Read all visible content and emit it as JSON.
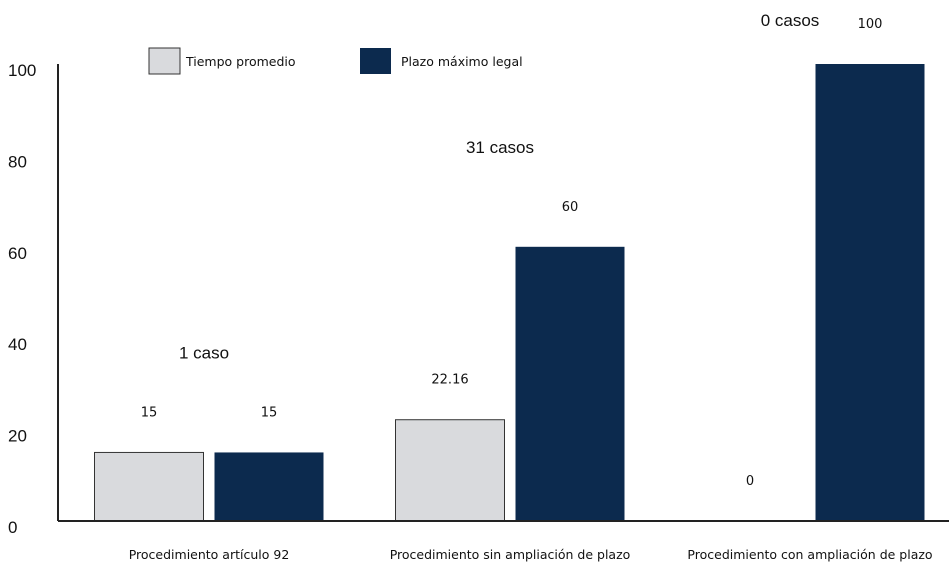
{
  "chart_data": {
    "type": "bar",
    "categories": [
      "Procedimiento artículo 92",
      "Procedimiento sin ampliación de plazo",
      "Procedimiento con ampliación de plazo"
    ],
    "series": [
      {
        "name": "Tiempo promedio",
        "values": [
          15,
          22.16,
          0
        ],
        "labels": [
          "15",
          "22.16",
          "0"
        ],
        "color": "#d9dadd"
      },
      {
        "name": "Plazo máximo legal",
        "values": [
          15,
          60,
          100
        ],
        "labels": [
          "15",
          "60",
          "100"
        ],
        "color": "#0c2a4e"
      }
    ],
    "case_counts": [
      "1 caso",
      "31 casos",
      "0 casos"
    ],
    "ylim": [
      0,
      100
    ],
    "yticks": [
      0,
      20,
      40,
      60,
      80,
      100
    ],
    "grid": false,
    "legend_position": "top-left",
    "title": "",
    "xlabel": "",
    "ylabel": ""
  }
}
